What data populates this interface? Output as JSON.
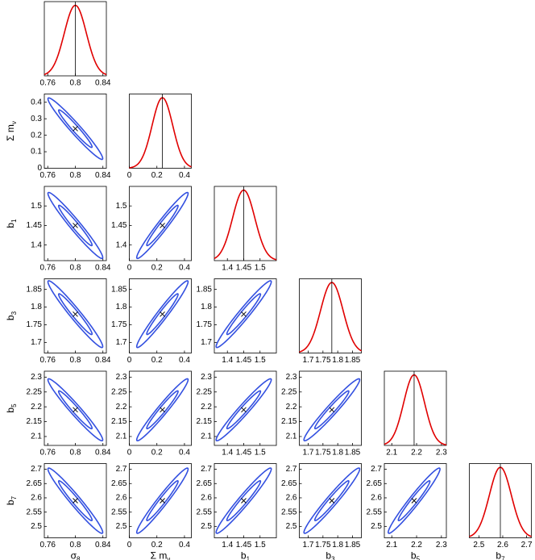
{
  "chart_data": {
    "type": "corner",
    "params": [
      {
        "symbol": "σ",
        "sub": "8",
        "fiducial": 0.8,
        "sigma": 0.016,
        "lim": [
          0.755,
          0.845
        ],
        "xticks": [
          0.76,
          0.8,
          0.84
        ]
      },
      {
        "symbol": "Σ m",
        "sub": "ν",
        "fiducial": 0.24,
        "sigma": 0.075,
        "lim": [
          0,
          0.45
        ],
        "xticks": [
          0,
          0.2,
          0.4
        ],
        "yticks": [
          0,
          0.1,
          0.2,
          0.3,
          0.4
        ]
      },
      {
        "symbol": "b",
        "sub": "1",
        "fiducial": 1.45,
        "sigma": 0.034,
        "lim": [
          1.36,
          1.55
        ],
        "xticks": [
          1.4,
          1.45,
          1.5
        ],
        "yticks": [
          1.4,
          1.45,
          1.5
        ]
      },
      {
        "symbol": "b",
        "sub": "3",
        "fiducial": 1.78,
        "sigma": 0.038,
        "lim": [
          1.67,
          1.88
        ],
        "xticks": [
          1.7,
          1.75,
          1.8,
          1.85
        ],
        "yticks": [
          1.7,
          1.75,
          1.8,
          1.85
        ]
      },
      {
        "symbol": "b",
        "sub": "5",
        "fiducial": 2.19,
        "sigma": 0.042,
        "lim": [
          2.07,
          2.32
        ],
        "xticks": [
          2.1,
          2.2,
          2.3
        ],
        "yticks": [
          2.1,
          2.15,
          2.2,
          2.25,
          2.3
        ]
      },
      {
        "symbol": "b",
        "sub": "7",
        "fiducial": 2.59,
        "sigma": 0.046,
        "lim": [
          2.46,
          2.72
        ],
        "xticks": [
          2.5,
          2.6,
          2.7
        ],
        "yticks": [
          2.5,
          2.55,
          2.6,
          2.65,
          2.7
        ]
      }
    ],
    "correlation": [
      [
        1,
        -0.97,
        -0.97,
        -0.97,
        -0.97,
        -0.97
      ],
      [
        -0.97,
        1,
        0.97,
        0.97,
        0.97,
        0.97
      ],
      [
        -0.97,
        0.97,
        1,
        0.97,
        0.97,
        0.97
      ],
      [
        -0.97,
        0.97,
        0.97,
        1,
        0.97,
        0.97
      ],
      [
        -0.97,
        0.97,
        0.97,
        0.97,
        1,
        0.97
      ],
      [
        -0.97,
        0.97,
        0.97,
        0.97,
        0.97,
        1
      ]
    ],
    "contour_levels": [
      2.3,
      6.17
    ],
    "contour_color": "#3350e0",
    "marginal_color": "#e00000"
  }
}
